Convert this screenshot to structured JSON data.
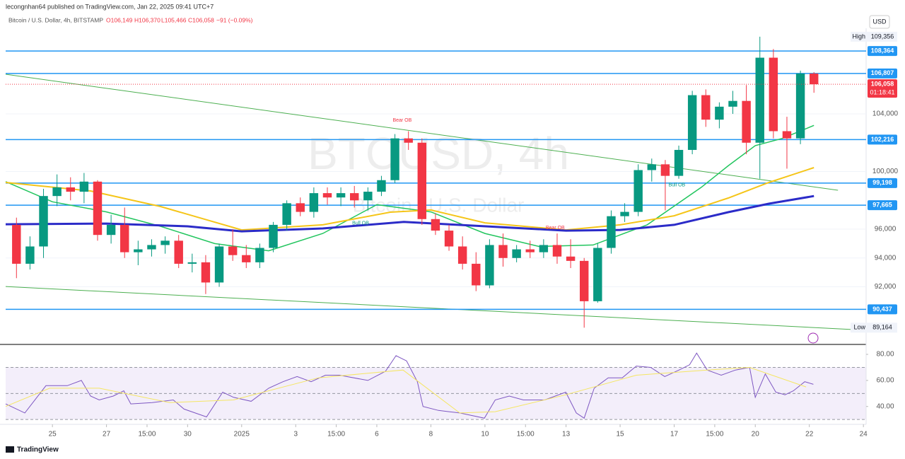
{
  "header": {
    "publisher": "lecongnhan64 published on TradingView.com, Jan 22, 2025 09:41 UTC+7",
    "symbol": "Bitcoin / U.S. Dollar, 4h, BITSTAMP",
    "ohlc": [
      "O106,149",
      "H106,370",
      "L105,466",
      "C106,058"
    ],
    "change": "−91 (−0.09%)",
    "currency": "USD",
    "watermark": "BTCUSD, 4h",
    "watermark_sub": "Bitcoin / U.S. Dollar"
  },
  "footer": {
    "brand": "TradingView"
  },
  "chart_data": [
    {
      "type": "candlestick",
      "up_color": "#089981",
      "down_color": "#f23645",
      "x": [
        0.67,
        1.17,
        1.67,
        2.17,
        2.67,
        3.17,
        3.67,
        4.17,
        4.67,
        5.17,
        5.67,
        6.17,
        6.67,
        7.17,
        7.67,
        8.17,
        8.67,
        9.17,
        9.67,
        10.17,
        10.67,
        11.17,
        11.67,
        12.17,
        12.67,
        13.17,
        13.67,
        14.17,
        14.67,
        15.17,
        15.67,
        16.17,
        16.67,
        17.17,
        17.67,
        18.17,
        18.67,
        19.17,
        19.67,
        20.17,
        20.67,
        21.17,
        21.67,
        22.17,
        22.67,
        23.17,
        23.67,
        24.17,
        24.67,
        25.17,
        25.67,
        26.17,
        26.67,
        27.17,
        27.67,
        28.17,
        28.67,
        29.17,
        29.67,
        30.17
      ],
      "open": [
        96300,
        93600,
        94800,
        98300,
        98900,
        98600,
        99300,
        95600,
        96300,
        94400,
        94600,
        94900,
        95200,
        93600,
        93700,
        92300,
        94800,
        94200,
        93700,
        94700,
        96300,
        97800,
        97200,
        98500,
        98200,
        98500,
        98000,
        98600,
        99400,
        102300,
        102000,
        96700,
        95900,
        94800,
        93600,
        92100,
        94900,
        94000,
        94600,
        94400,
        94900,
        94100,
        93800,
        91000,
        94700,
        96900,
        97200,
        100100,
        100500,
        99700,
        101500,
        105300,
        103600,
        104500,
        104900,
        102000,
        107900,
        102800,
        102300,
        106800
      ],
      "high": [
        96800,
        95500,
        98800,
        99800,
        99600,
        99900,
        99400,
        97000,
        97500,
        95200,
        95300,
        95500,
        95600,
        94300,
        94200,
        95000,
        96000,
        94900,
        95000,
        96500,
        98000,
        98200,
        98900,
        98900,
        98900,
        99000,
        98900,
        99700,
        102600,
        102800,
        102300,
        97100,
        96300,
        95500,
        94400,
        95300,
        95700,
        94900,
        95200,
        95300,
        95700,
        95300,
        94000,
        95000,
        97300,
        97800,
        100500,
        100900,
        100800,
        101800,
        105600,
        105700,
        104800,
        105600,
        106000,
        109356,
        108500,
        103800,
        107000,
        106900
      ],
      "low": [
        92600,
        93200,
        94000,
        97600,
        98000,
        97800,
        95200,
        95000,
        94000,
        93500,
        94100,
        94300,
        93300,
        93000,
        91500,
        92000,
        93800,
        93300,
        93300,
        94400,
        95900,
        96900,
        96800,
        97700,
        97600,
        97500,
        97300,
        98300,
        99200,
        101500,
        96300,
        95600,
        94500,
        93200,
        91700,
        91900,
        93400,
        93700,
        94000,
        94000,
        93600,
        93300,
        89164,
        90900,
        94300,
        96500,
        96900,
        99300,
        97300,
        99500,
        101200,
        103100,
        103000,
        104000,
        101200,
        99500,
        102300,
        100200,
        101900,
        105466
      ],
      "close": [
        93600,
        94800,
        98300,
        98900,
        98600,
        99300,
        95600,
        96300,
        94400,
        94600,
        94900,
        95200,
        93600,
        93700,
        92300,
        94800,
        94200,
        93700,
        94700,
        96300,
        97800,
        97200,
        98500,
        98200,
        98500,
        98000,
        98600,
        99400,
        102300,
        102000,
        96700,
        95900,
        94800,
        93600,
        92100,
        94900,
        94000,
        94600,
        94400,
        94900,
        94100,
        93800,
        91000,
        94700,
        96900,
        97200,
        100100,
        100500,
        99700,
        101500,
        105300,
        103600,
        104500,
        104900,
        102000,
        107900,
        102800,
        102300,
        106800,
        106058
      ],
      "xlim": [
        0.27,
        32.1
      ],
      "xticks": [
        {
          "value": 2,
          "label": "25"
        },
        {
          "value": 4,
          "label": "27"
        },
        {
          "value": 5.5,
          "label": "15:00"
        },
        {
          "value": 7,
          "label": "30"
        },
        {
          "value": 9,
          "label": "2025"
        },
        {
          "value": 11,
          "label": "3"
        },
        {
          "value": 12.5,
          "label": "15:00"
        },
        {
          "value": 14,
          "label": "6"
        },
        {
          "value": 16,
          "label": "8"
        },
        {
          "value": 18,
          "label": "10"
        },
        {
          "value": 19.5,
          "label": "15:00"
        },
        {
          "value": 21,
          "label": "13"
        },
        {
          "value": 23,
          "label": "15"
        },
        {
          "value": 25,
          "label": "17"
        },
        {
          "value": 26.5,
          "label": "15:00"
        },
        {
          "value": 28,
          "label": "20"
        },
        {
          "value": 30,
          "label": "22"
        },
        {
          "value": 32,
          "label": "24"
        }
      ],
      "ylim": [
        88100,
        109940
      ],
      "yticks": [
        {
          "value": 92000,
          "label": "92,000"
        },
        {
          "value": 94000,
          "label": "94,000"
        },
        {
          "value": 96000,
          "label": "96,000"
        },
        {
          "value": 100000,
          "label": "100,000"
        },
        {
          "value": 104000,
          "label": "104,000"
        }
      ],
      "level_color": "#2196f3",
      "levels": [
        {
          "value": 108364,
          "label": "108,364"
        },
        {
          "value": 106807,
          "label": "106,807"
        },
        {
          "value": 102216,
          "label": "102,216"
        },
        {
          "value": 99198,
          "label": "99,198"
        },
        {
          "value": 97665,
          "label": "97,665"
        },
        {
          "value": 90437,
          "label": "90,437"
        }
      ],
      "current": {
        "value": 106058,
        "label": "106,058",
        "countdown": "01:18:41",
        "color": "#f23645"
      },
      "high_marker": {
        "name": "High",
        "value": 109356,
        "label": "109,356"
      },
      "low_marker": {
        "name": "Low",
        "value": 89164,
        "label": "89,164"
      },
      "lines": [
        {
          "color": "#22c55e",
          "width": 1.5,
          "x": [
            0.27,
            2,
            4,
            6,
            8,
            10,
            12,
            14,
            16,
            18,
            20,
            22,
            24,
            26,
            27,
            28,
            29,
            30.17
          ],
          "values": [
            99300,
            97900,
            97200,
            96200,
            95000,
            94500,
            95700,
            97700,
            97200,
            95700,
            94800,
            94900,
            96300,
            98900,
            100400,
            101800,
            102300,
            103200
          ]
        },
        {
          "color": "#f5c518",
          "width": 2,
          "x": [
            0.27,
            3.41,
            6,
            9,
            12,
            14.5,
            16,
            18,
            21,
            23,
            25,
            27,
            28.5,
            30.17
          ],
          "values": [
            99240,
            98650,
            97570,
            95950,
            96300,
            97180,
            97330,
            96440,
            95950,
            96300,
            96930,
            98160,
            99240,
            100270
          ]
        },
        {
          "color": "#2b2bc8",
          "width": 3,
          "x": [
            0.27,
            4,
            7,
            9,
            12,
            15,
            17,
            19,
            21,
            23,
            25,
            27,
            28.5,
            30.17
          ],
          "values": [
            96340,
            96390,
            96200,
            95850,
            96050,
            96500,
            96300,
            96100,
            95900,
            95950,
            96300,
            97180,
            97770,
            98300
          ]
        }
      ],
      "trendlines": [
        {
          "color": "#4caf50",
          "x": [
            0.27,
            31.06
          ],
          "values": [
            106750,
            98700
          ]
        },
        {
          "color": "#4caf50",
          "x": [
            0.27,
            31.7
          ],
          "values": [
            92020,
            89030
          ]
        }
      ],
      "annotations": [
        {
          "text": "Bear OB",
          "x": 14.94,
          "y": 103560,
          "color": "#f23645"
        },
        {
          "text": "Bull OB",
          "x": 13.4,
          "y": 96400,
          "color": "#089981"
        },
        {
          "text": "Bear OB",
          "x": 20.6,
          "y": 96100,
          "color": "#f23645"
        },
        {
          "text": "Bull OB",
          "x": 25.1,
          "y": 99050,
          "color": "#089981"
        }
      ]
    },
    {
      "type": "line",
      "series": [
        {
          "color": "#7e57c2",
          "x": [
            0.27,
            0.98,
            1.76,
            2.55,
            3.07,
            3.41,
            3.73,
            4.25,
            4.64,
            4.9,
            5.69,
            6.47,
            6.87,
            7.7,
            8.3,
            8.7,
            9.35,
            10,
            10.53,
            11.05,
            11.57,
            12.1,
            12.62,
            13.67,
            14.32,
            14.71,
            15.1,
            15.5,
            15.71,
            16.28,
            17.07,
            17.98,
            18.38,
            18.9,
            19.42,
            20.21,
            20.99,
            21.38,
            21.67,
            22.04,
            22.56,
            23.08,
            23.6,
            24.13,
            24.65,
            25.18,
            25.57,
            25.83,
            26.22,
            26.74,
            27.27,
            27.79,
            28,
            28.37,
            28.76,
            29.1,
            29.41,
            29.83,
            30.15
          ],
          "values": [
            42,
            35,
            56,
            56,
            60,
            48,
            45,
            48,
            52,
            42,
            43,
            45,
            38,
            32,
            51,
            47,
            44,
            54,
            59,
            63,
            59,
            64,
            64,
            60,
            67,
            79,
            75,
            59,
            40,
            37,
            35,
            31,
            45,
            48,
            45,
            45,
            51,
            35,
            31,
            54,
            62,
            62,
            71,
            70,
            63,
            68,
            72,
            81,
            68,
            64,
            68,
            70,
            47,
            65,
            51,
            49,
            52,
            59,
            57
          ]
        },
        {
          "color": "#f5e663",
          "x": [
            0.27,
            1.9,
            3.73,
            6.34,
            8.7,
            11.84,
            14.97,
            17.07,
            18.38,
            20.99,
            23.6,
            26.22,
            27.79,
            29.88
          ],
          "values": [
            40,
            54,
            54,
            43,
            45,
            62,
            68,
            35,
            36,
            49,
            64,
            68,
            70,
            55
          ]
        }
      ],
      "ylim": [
        29,
        86
      ],
      "yticks": [
        {
          "value": 80,
          "label": "80.00"
        },
        {
          "value": 60,
          "label": "60.00"
        },
        {
          "value": 40,
          "label": "40.00"
        }
      ],
      "levels": [
        70,
        50,
        30
      ]
    }
  ]
}
